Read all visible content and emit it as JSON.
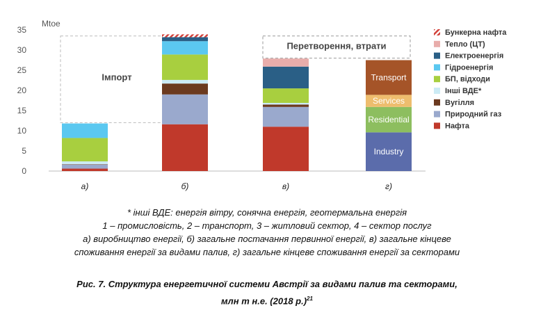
{
  "chart_data": {
    "type": "bar",
    "stacked": true,
    "ylabel": "Mtoe",
    "ylim": [
      0,
      35
    ],
    "yticks": [
      0,
      5,
      10,
      15,
      20,
      25,
      30,
      35
    ],
    "grid": false,
    "legend_position": "right",
    "categories": [
      "а)",
      "б)",
      "в)",
      "г)"
    ],
    "series": [
      {
        "name": "Нафта",
        "color": "#c0392b",
        "values": [
          0.6,
          11.6,
          11.0,
          0
        ]
      },
      {
        "name": "Природний газ",
        "color": "#9aa9cd",
        "values": [
          1.0,
          7.4,
          4.9,
          0
        ]
      },
      {
        "name": "Вугілля",
        "color": "#6b3a1f",
        "values": [
          0.1,
          2.7,
          0.6,
          0
        ]
      },
      {
        "name": "Інші ВДЕ*",
        "color": "#ccebf5",
        "values": [
          0.7,
          0.9,
          0.4,
          0
        ]
      },
      {
        "name": "БП, відходи",
        "color": "#a8cf3f",
        "values": [
          5.8,
          6.3,
          3.6,
          0
        ]
      },
      {
        "name": "Гідроенергія",
        "color": "#5bc8f0",
        "values": [
          3.6,
          3.3,
          0,
          0
        ]
      },
      {
        "name": "Електроенергія",
        "color": "#2a5f86",
        "values": [
          0,
          1.0,
          5.4,
          0
        ]
      },
      {
        "name": "Тепло (ЦТ)",
        "color": "#e8adab",
        "values": [
          0,
          0,
          2.0,
          0
        ]
      },
      {
        "name": "Бункерна нафта",
        "color": "#d2413a",
        "pattern": "hatch",
        "values": [
          0,
          0.7,
          0,
          0
        ]
      }
    ],
    "sector_series": [
      {
        "label": "Industry",
        "color": "#5b6cab",
        "value": 9.6
      },
      {
        "label": "Residential",
        "color": "#8dbe5f",
        "value": 6.3
      },
      {
        "label": "Services",
        "color": "#eebd6e",
        "value": 3.0
      },
      {
        "label": "Transport",
        "color": "#a55428",
        "value": 8.6
      }
    ],
    "sector_bar_category": "г)",
    "annotations": [
      {
        "label": "Імпорт",
        "bar": "а)",
        "box_top": 33.5
      },
      {
        "label": "Перетворення, втрати",
        "bar": "в)",
        "box_top": 33.5
      }
    ]
  },
  "notes": [
    "* інші ВДЕ: енергія вітру, сонячна енергія, геотермальна енергія",
    "1 – промисловість, 2 – транспорт, 3 – житловий сектор, 4 – сектор послуг",
    "а) виробництво енергії, б) загальне постачання первинної енергії,  в) загальне кінцеве",
    "споживання енергії за видами палив, г) загальне кінцеве споживання енергії за секторами"
  ],
  "caption": {
    "line1": "Рис. 7. Структура енергетичної системи Австрії за видами палив та секторами,",
    "line2": "млн т н.е. (2018 р.)",
    "sup": "21"
  }
}
